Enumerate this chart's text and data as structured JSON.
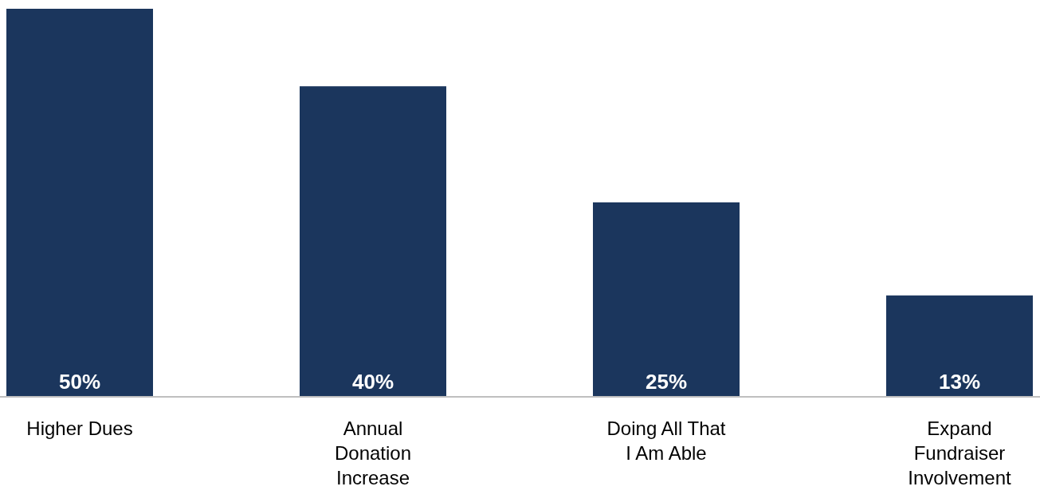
{
  "chart_data": {
    "type": "bar",
    "categories": [
      "Higher Dues",
      "Annual Donation Increase",
      "Doing All That I Am Able",
      "Expand Fundraiser Involvement"
    ],
    "values": [
      50,
      40,
      25,
      13
    ],
    "value_labels": [
      "50%",
      "40%",
      "25%",
      "13%"
    ],
    "color": "#1b365d"
  }
}
